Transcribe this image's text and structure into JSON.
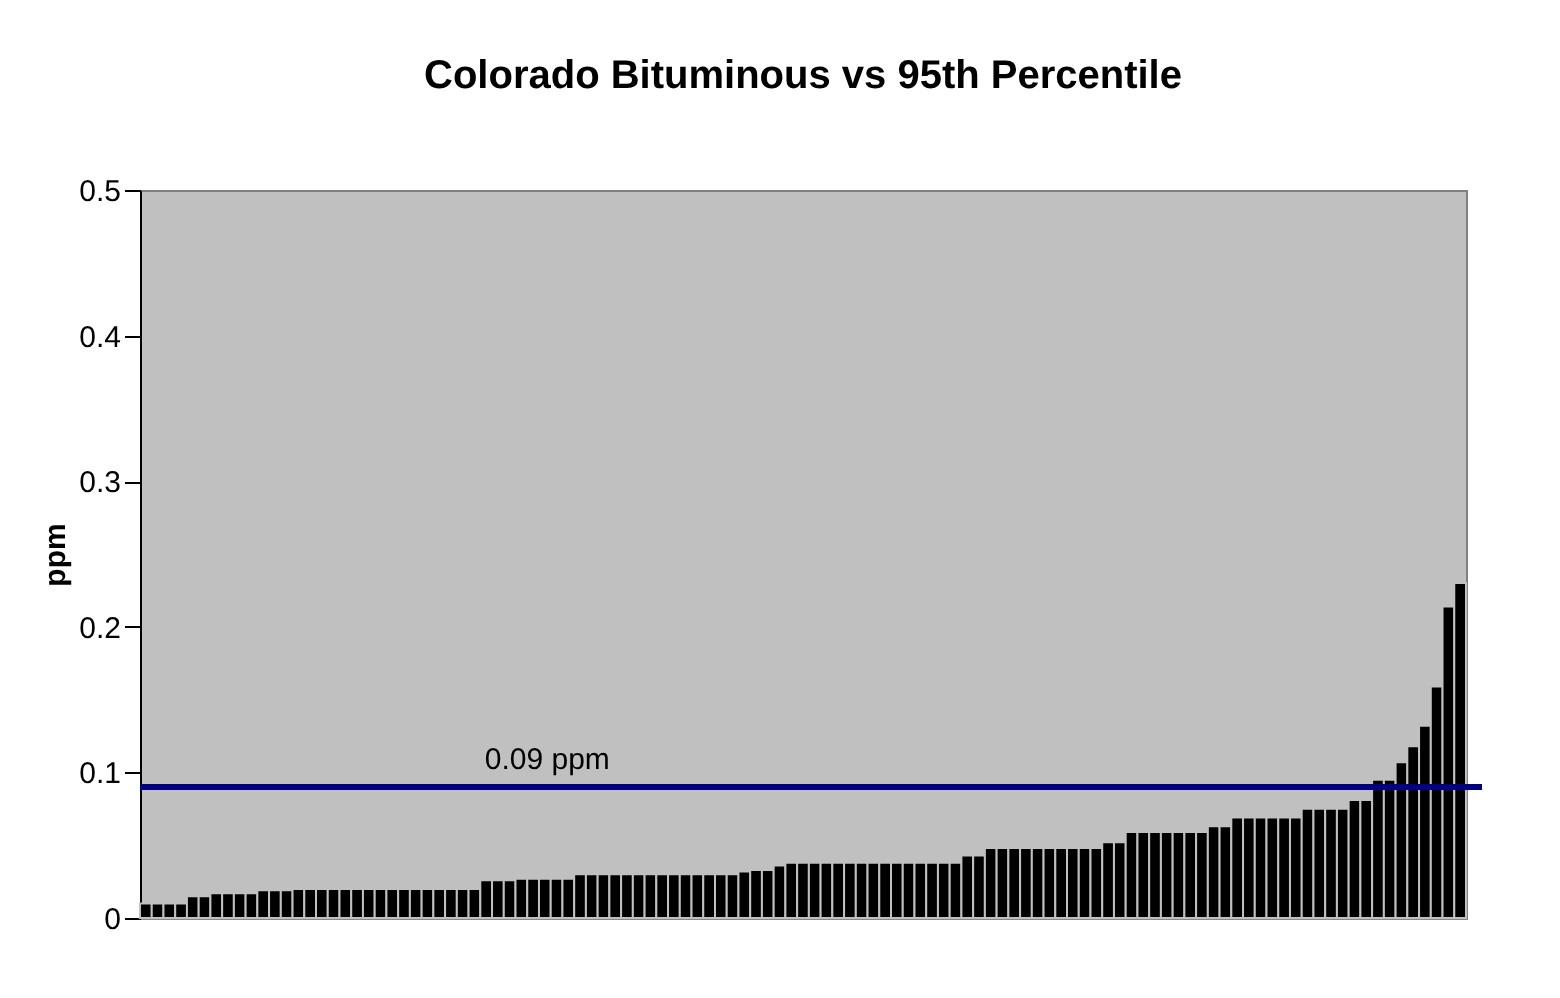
{
  "chart_data": {
    "type": "bar",
    "title": "Colorado Bituminous vs 95th Percentile",
    "ylabel": "ppm",
    "categories": [
      null,
      null,
      null,
      null,
      null,
      null,
      null,
      null,
      null,
      null,
      null,
      null,
      null,
      null,
      null,
      null,
      null,
      null,
      null,
      null,
      null,
      null,
      null,
      null,
      null,
      null,
      null,
      null,
      null,
      null,
      null,
      null,
      null,
      null,
      null,
      null,
      null,
      null,
      null,
      null,
      null,
      null,
      null,
      null,
      null,
      null,
      null,
      null,
      null,
      null,
      null,
      null,
      null,
      null,
      null,
      null,
      null,
      null,
      null,
      null,
      null,
      null,
      null,
      null,
      null,
      null,
      null,
      null,
      null,
      null,
      null,
      null,
      null,
      null,
      null,
      null,
      null,
      null,
      null,
      null,
      null,
      null,
      null,
      null,
      null,
      null,
      null,
      null,
      null,
      null,
      null,
      null,
      null,
      null,
      null,
      null,
      null,
      null,
      null,
      null,
      null,
      null,
      null,
      null,
      null,
      null,
      null,
      null,
      null,
      null,
      null,
      null,
      null
    ],
    "values": [
      0.01,
      0.01,
      0.01,
      0.01,
      0.015,
      0.015,
      0.017,
      0.017,
      0.017,
      0.017,
      0.019,
      0.019,
      0.019,
      0.02,
      0.02,
      0.02,
      0.02,
      0.02,
      0.02,
      0.02,
      0.02,
      0.02,
      0.02,
      0.02,
      0.02,
      0.02,
      0.02,
      0.02,
      0.02,
      0.026,
      0.026,
      0.026,
      0.027,
      0.027,
      0.027,
      0.027,
      0.027,
      0.03,
      0.03,
      0.03,
      0.03,
      0.03,
      0.03,
      0.03,
      0.03,
      0.03,
      0.03,
      0.03,
      0.03,
      0.03,
      0.03,
      0.032,
      0.033,
      0.033,
      0.036,
      0.038,
      0.038,
      0.038,
      0.038,
      0.038,
      0.038,
      0.038,
      0.038,
      0.038,
      0.038,
      0.038,
      0.038,
      0.038,
      0.038,
      0.038,
      0.043,
      0.043,
      0.048,
      0.048,
      0.048,
      0.048,
      0.048,
      0.048,
      0.048,
      0.048,
      0.048,
      0.048,
      0.052,
      0.052,
      0.059,
      0.059,
      0.059,
      0.059,
      0.059,
      0.059,
      0.059,
      0.063,
      0.063,
      0.069,
      0.069,
      0.069,
      0.069,
      0.069,
      0.069,
      0.075,
      0.075,
      0.075,
      0.075,
      0.081,
      0.081,
      0.095,
      0.095,
      0.107,
      0.118,
      0.132,
      0.159,
      0.214,
      0.23
    ],
    "color": "#000000",
    "ylim": [
      0,
      0.5
    ],
    "yticks": [
      0,
      0.1,
      0.2,
      0.3,
      0.4,
      0.5
    ],
    "ref_lines": [
      {
        "axis": "y",
        "value": 0.09,
        "label": "0.09 ppm",
        "color": "#000080"
      }
    ],
    "tick_labels": "y",
    "grid": false
  }
}
